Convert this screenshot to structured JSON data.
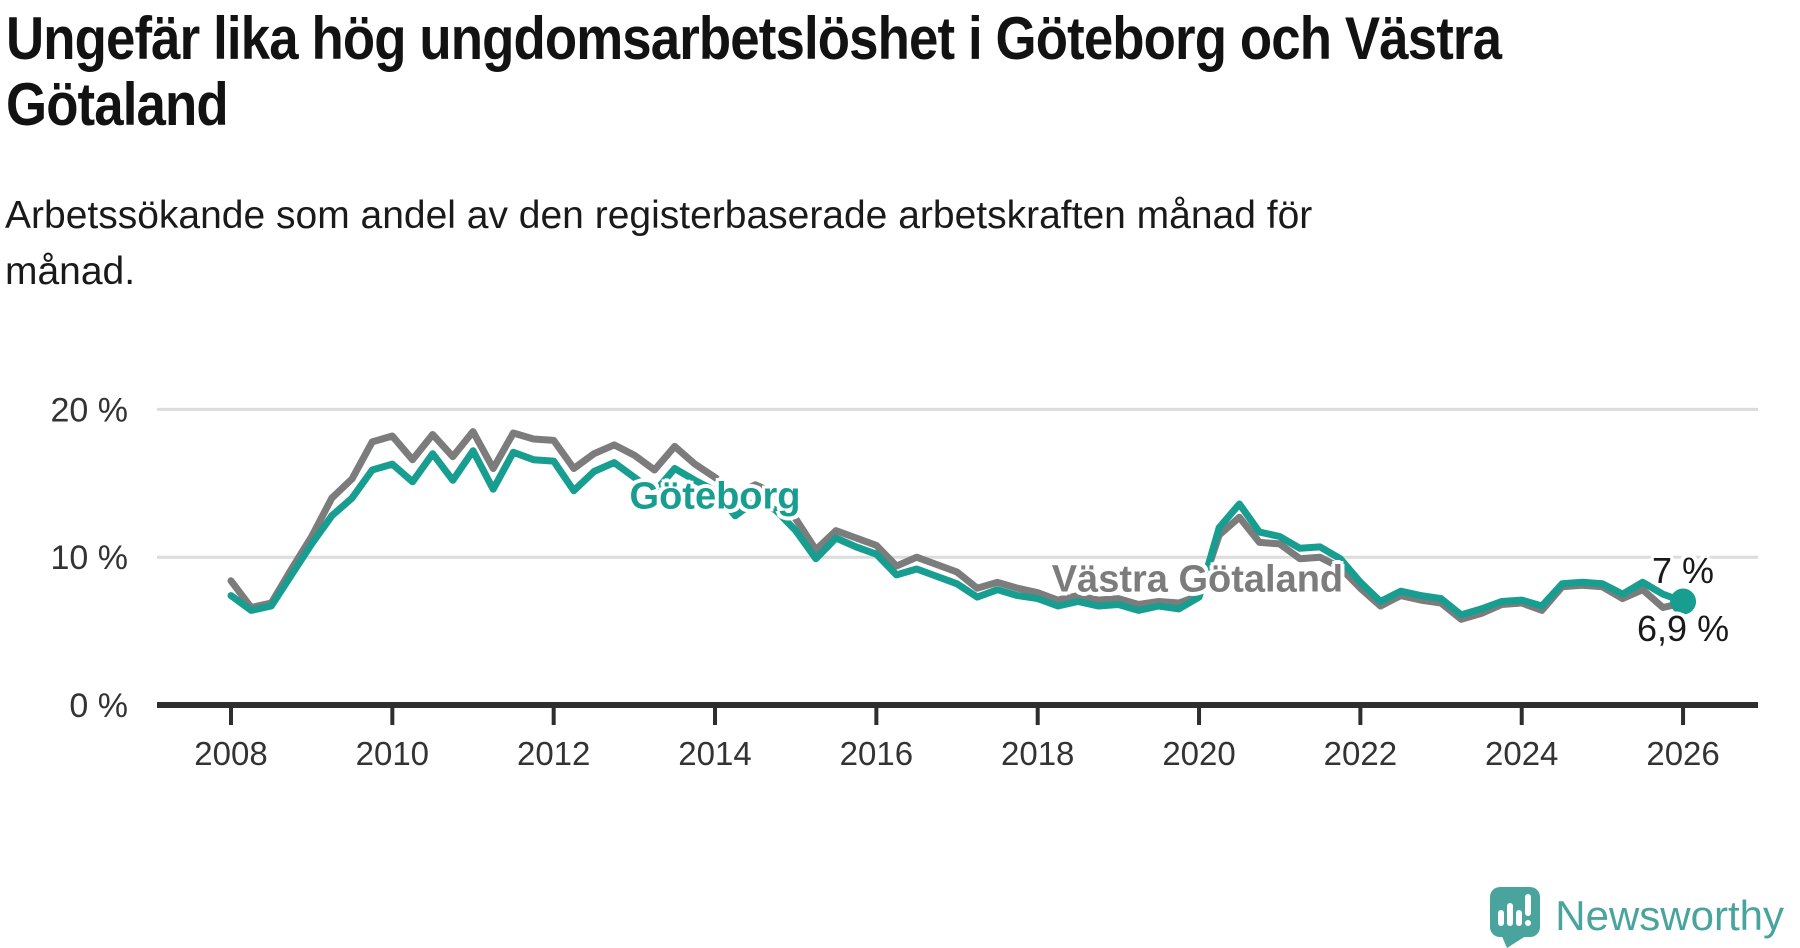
{
  "header": {
    "title_lines": [
      "Ungefär lika hög ungdomsarbetslöshet i Göteborg och Västra",
      "Götaland"
    ],
    "subtitle_lines": [
      "Arbetssökande som andel av den registerbaserade arbetskraften månad för",
      "månad."
    ]
  },
  "chart_data": {
    "type": "line",
    "title": "Ungefär lika hög ungdomsarbetslöshet i Göteborg och Västra Götaland",
    "subtitle": "Arbetssökande som andel av den registerbaserade arbetskraften månad för månad.",
    "ylabel": "",
    "xlabel": "",
    "ylim": [
      0,
      21
    ],
    "grid": "horizontal-only",
    "legend": "inline-labels",
    "yticks": [
      {
        "value": 0,
        "label": "0 %"
      },
      {
        "value": 10,
        "label": "10 %"
      },
      {
        "value": 20,
        "label": "20 %"
      }
    ],
    "xticks": [
      2008,
      2010,
      2012,
      2014,
      2016,
      2018,
      2020,
      2022,
      2024,
      2026
    ],
    "x": [
      2008.0,
      2008.25,
      2008.5,
      2008.75,
      2009.0,
      2009.25,
      2009.5,
      2009.75,
      2010.0,
      2010.25,
      2010.5,
      2010.75,
      2011.0,
      2011.25,
      2011.5,
      2011.75,
      2012.0,
      2012.25,
      2012.5,
      2012.75,
      2013.0,
      2013.25,
      2013.5,
      2013.75,
      2014.0,
      2014.25,
      2014.5,
      2014.75,
      2015.0,
      2015.25,
      2015.5,
      2015.75,
      2016.0,
      2016.25,
      2016.5,
      2016.75,
      2017.0,
      2017.25,
      2017.5,
      2017.75,
      2018.0,
      2018.25,
      2018.5,
      2018.75,
      2019.0,
      2019.25,
      2019.5,
      2019.75,
      2020.0,
      2020.25,
      2020.5,
      2020.75,
      2021.0,
      2021.25,
      2021.5,
      2021.75,
      2022.0,
      2022.25,
      2022.5,
      2022.75,
      2023.0,
      2023.25,
      2023.5,
      2023.75,
      2024.0,
      2024.25,
      2024.5,
      2024.75,
      2025.0,
      2025.25,
      2025.5,
      2025.75,
      2026.0
    ],
    "series": [
      {
        "name": "Västra Götaland",
        "color": "#7c7c7c",
        "end_dot": false,
        "end_value": "6,9 %",
        "values": [
          8.4,
          6.6,
          6.9,
          9.2,
          11.4,
          14.0,
          15.3,
          17.8,
          18.2,
          16.6,
          18.3,
          16.8,
          18.5,
          16.0,
          18.4,
          18.0,
          17.9,
          16.0,
          17.0,
          17.6,
          16.9,
          15.9,
          17.5,
          16.3,
          15.4,
          14.2,
          14.9,
          14.3,
          12.6,
          10.5,
          11.8,
          11.3,
          10.8,
          9.4,
          10.0,
          9.5,
          9.0,
          7.9,
          8.3,
          7.9,
          7.6,
          7.1,
          7.4,
          7.1,
          7.2,
          6.8,
          7.0,
          6.9,
          7.4,
          11.5,
          12.7,
          11.0,
          10.9,
          9.9,
          10.0,
          9.3,
          7.9,
          6.7,
          7.4,
          7.1,
          6.9,
          5.8,
          6.2,
          6.8,
          6.9,
          6.4,
          8.0,
          8.1,
          8.0,
          7.2,
          7.8,
          6.6,
          6.9
        ]
      },
      {
        "name": "Göteborg",
        "color": "#179e90",
        "end_dot": true,
        "end_value": "7 %",
        "values": [
          7.4,
          6.4,
          6.7,
          8.8,
          10.9,
          12.8,
          14.0,
          15.9,
          16.3,
          15.1,
          17.0,
          15.2,
          17.2,
          14.6,
          17.1,
          16.6,
          16.5,
          14.5,
          15.8,
          16.4,
          15.4,
          14.4,
          16.0,
          15.2,
          14.5,
          12.8,
          13.8,
          13.2,
          11.8,
          9.9,
          11.3,
          10.7,
          10.2,
          8.8,
          9.2,
          8.7,
          8.2,
          7.3,
          7.8,
          7.4,
          7.2,
          6.7,
          7.0,
          6.7,
          6.8,
          6.4,
          6.7,
          6.5,
          7.3,
          12.0,
          13.6,
          11.7,
          11.4,
          10.6,
          10.7,
          9.9,
          8.3,
          7.0,
          7.7,
          7.4,
          7.2,
          6.1,
          6.5,
          7.0,
          7.1,
          6.7,
          8.2,
          8.3,
          8.2,
          7.5,
          8.3,
          7.5,
          7.0
        ]
      }
    ],
    "annotations": {
      "goteborg": {
        "text": "Göteborg",
        "x": 2014.0,
        "y": 14.1,
        "color": "#179e90"
      },
      "vastra_gotaland": {
        "text": "Västra Götaland",
        "x": 2019.98,
        "y": 8.45,
        "color": "#7c7c7c"
      },
      "end_value_top": {
        "text": "7 %",
        "x": 2026.0,
        "y": 9.1,
        "color": "#1a1a1a"
      },
      "end_value_bottom": {
        "text": "6,9 %",
        "x": 2026.0,
        "y": 5.15,
        "color": "#1a1a1a"
      }
    },
    "axis_colors": {
      "grid": "#dcdcdc",
      "axis": "#2e2e2e",
      "tick_text": "#333333"
    }
  },
  "footer": {
    "brand": "Newsworthy",
    "brand_color": "#4aa49e"
  }
}
